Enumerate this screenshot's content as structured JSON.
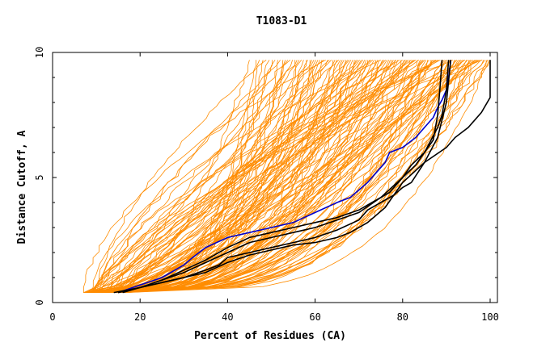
{
  "chart_data": {
    "type": "line",
    "title": "T1083-D1",
    "xlabel": "Percent of Residues (CA)",
    "ylabel": "Distance Cutoff, A",
    "xlim": [
      0,
      100
    ],
    "ylim": [
      0,
      10
    ],
    "x_ticks": [
      "0",
      "20",
      "40",
      "60",
      "80",
      "100"
    ],
    "y_ticks": [
      "0",
      "5",
      "10"
    ],
    "x_tick_values": [
      0,
      20,
      40,
      60,
      80,
      100
    ],
    "y_tick_values": [
      0,
      5,
      10
    ],
    "grid": false,
    "colors": {
      "background": "#ffffff",
      "axes": "#000000",
      "models": "#ff8c00",
      "highlight_black": "#000000",
      "highlight_blue": "#0000cc"
    },
    "background_model_count": 140,
    "series": [
      {
        "color": "#0000cc",
        "x": [
          15,
          20,
          25,
          30,
          32,
          35,
          40,
          45,
          50,
          55,
          60,
          65,
          68,
          70,
          72,
          74,
          76,
          77,
          80,
          83,
          85,
          87,
          88,
          89,
          90,
          90.5,
          91
        ],
        "y": [
          0.4,
          0.7,
          1.0,
          1.5,
          1.8,
          2.2,
          2.6,
          2.8,
          3.0,
          3.2,
          3.6,
          4.0,
          4.2,
          4.5,
          4.8,
          5.2,
          5.6,
          6.0,
          6.2,
          6.6,
          7.0,
          7.4,
          7.8,
          8.1,
          8.5,
          9.0,
          9.7
        ]
      },
      {
        "color": "#000000",
        "x": [
          15,
          20,
          25,
          30,
          35,
          40,
          45,
          50,
          55,
          60,
          65,
          70,
          73,
          77,
          80,
          82,
          85,
          87,
          88,
          88.5,
          89
        ],
        "y": [
          0.4,
          0.6,
          0.9,
          1.3,
          1.7,
          2.2,
          2.6,
          2.8,
          3.0,
          3.2,
          3.4,
          3.7,
          4.0,
          4.4,
          5.0,
          5.5,
          6.0,
          6.5,
          7.5,
          8.5,
          9.7
        ]
      },
      {
        "color": "#000000",
        "x": [
          15,
          20,
          25,
          30,
          35,
          40,
          45,
          50,
          55,
          60,
          65,
          70,
          75,
          80,
          83,
          85,
          88,
          89,
          90,
          90.5
        ],
        "y": [
          0.4,
          0.6,
          0.9,
          1.2,
          1.6,
          2.0,
          2.4,
          2.6,
          2.8,
          3.0,
          3.3,
          3.6,
          4.2,
          5.0,
          5.5,
          6.0,
          7.0,
          7.5,
          8.5,
          9.7
        ]
      },
      {
        "color": "#000000",
        "x": [
          14,
          20,
          25,
          30,
          35,
          38,
          40,
          45,
          50,
          55,
          60,
          65,
          70,
          72,
          75,
          78,
          80,
          82,
          85,
          88,
          90,
          91
        ],
        "y": [
          0.4,
          0.6,
          0.8,
          1.0,
          1.3,
          1.5,
          1.8,
          2.0,
          2.2,
          2.4,
          2.6,
          2.9,
          3.3,
          3.7,
          4.0,
          4.3,
          4.6,
          4.8,
          5.6,
          6.6,
          8.0,
          9.7
        ]
      },
      {
        "color": "#000000",
        "x": [
          16,
          20,
          25,
          30,
          35,
          40,
          45,
          50,
          55,
          60,
          65,
          68,
          72,
          76,
          80,
          85,
          90,
          92,
          95,
          98,
          100,
          100
        ],
        "y": [
          0.4,
          0.6,
          0.8,
          1.0,
          1.2,
          1.6,
          1.9,
          2.1,
          2.3,
          2.4,
          2.6,
          2.8,
          3.2,
          3.8,
          4.8,
          5.6,
          6.2,
          6.6,
          7.0,
          7.6,
          8.2,
          9.7
        ]
      }
    ]
  }
}
